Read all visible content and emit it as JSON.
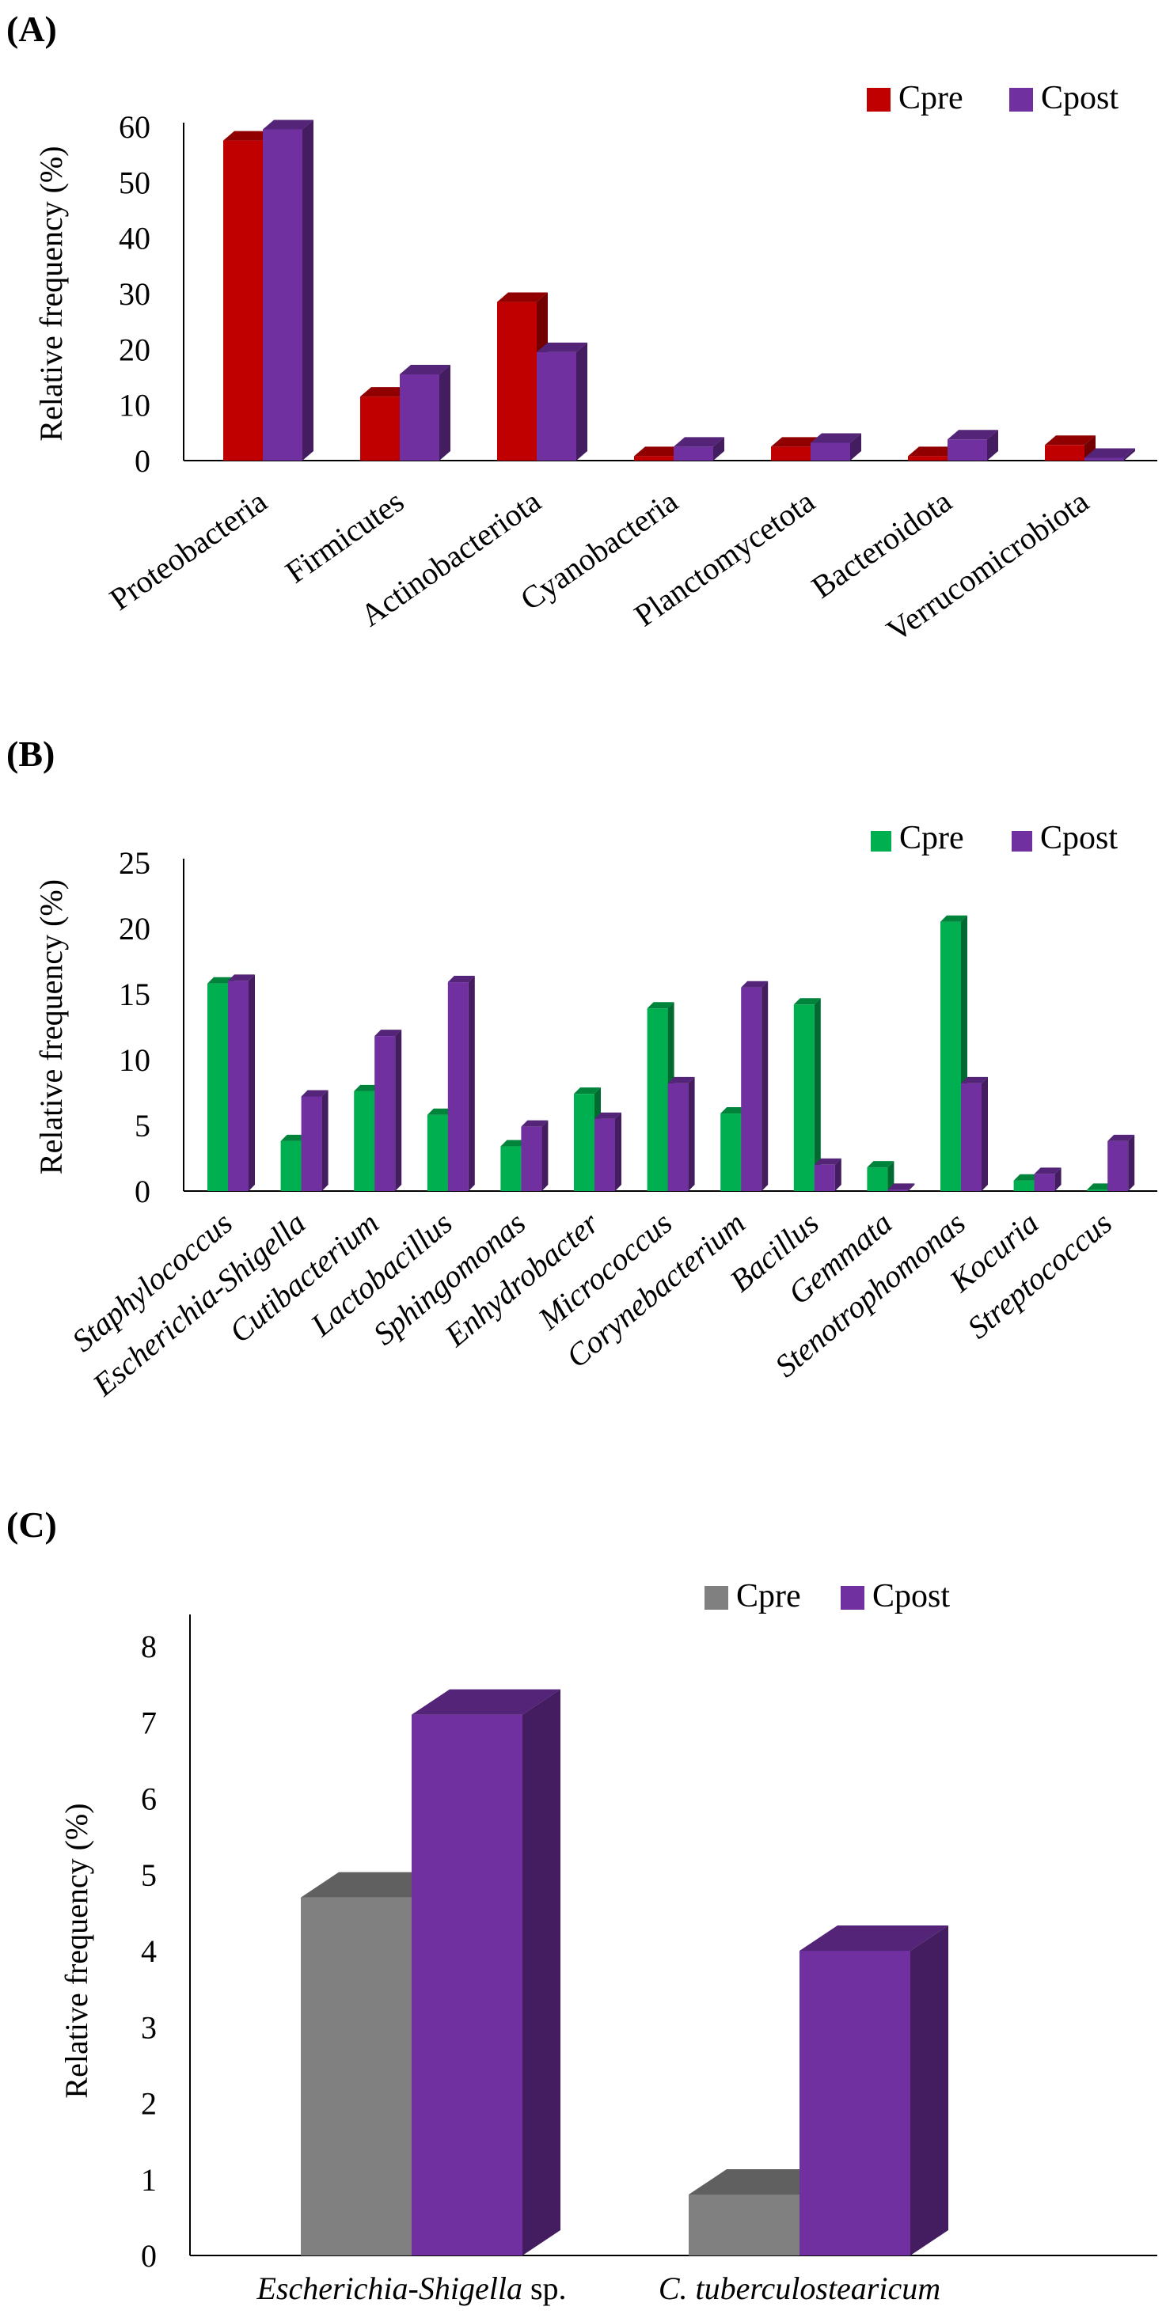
{
  "figure": {
    "panels": [
      {
        "label": "(A)",
        "chart_data": {
          "type": "bar",
          "title": "",
          "xlabel": "",
          "ylabel": "Relative frequency (%)",
          "ylim": [
            0,
            60
          ],
          "yticks": [
            "0",
            "10",
            "20",
            "30",
            "40",
            "50",
            "60"
          ],
          "categories": [
            "Proteobacteria",
            "Firmicutes",
            "Actinobacteriota",
            "Cyanobacteria",
            "Planctomycetota",
            "Bacteroidota",
            "Verrucomicrobiota"
          ],
          "category_style": "normal",
          "series": [
            {
              "name": "Cpre",
              "values": [
                57.5,
                11.5,
                28.5,
                0.8,
                2.5,
                0.8,
                2.8
              ]
            },
            {
              "name": "Cpost",
              "values": [
                59.5,
                15.5,
                19.5,
                2.5,
                3.2,
                3.8,
                0.5
              ]
            }
          ],
          "colors": {
            "Cpre": "#c00000",
            "Cpost": "#7030a0"
          },
          "legend": "top-right"
        }
      },
      {
        "label": "(B)",
        "chart_data": {
          "type": "bar",
          "title": "",
          "xlabel": "",
          "ylabel": "Relative frequency (%)",
          "ylim": [
            0,
            25
          ],
          "yticks": [
            "0",
            "5",
            "10",
            "15",
            "20",
            "25"
          ],
          "categories": [
            "Staphylococcus",
            "Escherichia-Shigella",
            "Cutibacterium",
            "Lactobacillus",
            "Sphingomonas",
            "Enhydrobacter",
            "Micrococcus",
            "Corynebacterium",
            "Bacillus",
            "Gemmata",
            "Stenotrophomonas",
            "Kocuria",
            "Streptococcus"
          ],
          "category_style": "italic",
          "series": [
            {
              "name": "Cpre",
              "values": [
                15.8,
                3.8,
                7.6,
                5.8,
                3.4,
                7.4,
                13.9,
                5.9,
                14.2,
                1.8,
                20.5,
                0.8,
                0.1
              ]
            },
            {
              "name": "Cpost",
              "values": [
                16.0,
                7.2,
                11.8,
                15.9,
                4.9,
                5.5,
                8.2,
                15.5,
                2.0,
                0.1,
                8.2,
                1.3,
                3.8
              ]
            }
          ],
          "colors": {
            "Cpre": "#00b050",
            "Cpost": "#7030a0"
          },
          "legend": "top-right"
        }
      },
      {
        "label": "(C)",
        "chart_data": {
          "type": "bar",
          "title": "",
          "xlabel": "",
          "ylabel": "Relative frequency (%)",
          "ylim": [
            0,
            8
          ],
          "yticks": [
            "0",
            "1",
            "2",
            "3",
            "4",
            "5",
            "6",
            "7",
            "8"
          ],
          "categories": [
            {
              "italic": "Escherichia-Shigella",
              "normal": " sp."
            },
            {
              "italic": "C. tuberculostearicum",
              "normal": ""
            }
          ],
          "category_style": "mixed",
          "series": [
            {
              "name": "Cpre",
              "values": [
                4.7,
                0.8
              ]
            },
            {
              "name": "Cpost",
              "values": [
                7.1,
                4.0
              ]
            }
          ],
          "colors": {
            "Cpre": "#808080",
            "Cpost": "#7030a0"
          },
          "legend": "top-center"
        }
      }
    ]
  }
}
